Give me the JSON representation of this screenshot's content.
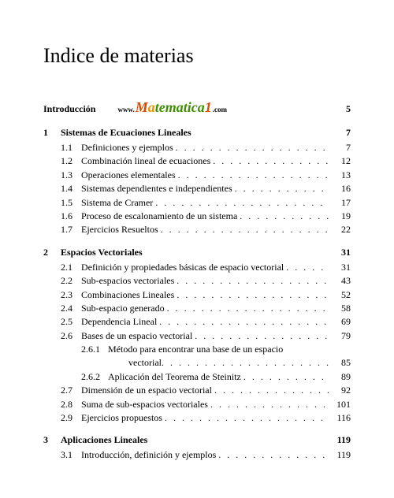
{
  "title": "Indice de materias",
  "intro": {
    "label": "Introducción",
    "page": "5"
  },
  "logo": {
    "www": "www.",
    "M": "M",
    "a": "a",
    "rest": "tematica",
    "one": "1",
    "com": ".com"
  },
  "ch1": {
    "num": "1",
    "title": "Sistemas de Ecuaciones Lineales",
    "page": "7",
    "items": [
      {
        "num": "1.1",
        "title": "Definiciones y ejemplos",
        "page": "7"
      },
      {
        "num": "1.2",
        "title": "Combinación lineal de ecuaciones",
        "page": "12"
      },
      {
        "num": "1.3",
        "title": "Operaciones elementales",
        "page": "13"
      },
      {
        "num": "1.4",
        "title": "Sistemas dependientes e independientes",
        "page": "16"
      },
      {
        "num": "1.5",
        "title": "Sistema de Cramer",
        "page": "17"
      },
      {
        "num": "1.6",
        "title": "Proceso de escalonamiento de un sistema",
        "page": "19"
      },
      {
        "num": "1.7",
        "title": "Ejercicios Resueltos",
        "page": "22"
      }
    ]
  },
  "ch2": {
    "num": "2",
    "title": "Espacios Vectoriales",
    "page": "31",
    "items": [
      {
        "num": "2.1",
        "title": "Definición y propiedades básicas de espacio vectorial",
        "page": "31"
      },
      {
        "num": "2.2",
        "title": "Sub-espacios vectoriales",
        "page": "43"
      },
      {
        "num": "2.3",
        "title": "Combinaciones Lineales",
        "page": "52"
      },
      {
        "num": "2.4",
        "title": "Sub-espacio generado",
        "page": "58"
      },
      {
        "num": "2.5",
        "title": "Dependencia Lineal",
        "page": "69"
      },
      {
        "num": "2.6",
        "title": "Bases de un espacio vectorial",
        "page": "79"
      }
    ],
    "sub26": [
      {
        "num": "2.6.1",
        "line1": "Método para encontrar una base de un espacio",
        "line2": "vectorial",
        "page": "85"
      },
      {
        "num": "2.6.2",
        "line1": "Aplicación del Teorema de Steinitz",
        "page": "89"
      }
    ],
    "items2": [
      {
        "num": "2.7",
        "title": "Dimensión de un espacio vectorial",
        "page": "92"
      },
      {
        "num": "2.8",
        "title": "Suma de sub-espacios vectoriales",
        "page": "101"
      },
      {
        "num": "2.9",
        "title": "Ejercicios propuestos",
        "page": "116"
      }
    ]
  },
  "ch3": {
    "num": "3",
    "title": "Aplicaciones Lineales",
    "page": "119",
    "items": [
      {
        "num": "3.1",
        "title": "Introducción, definición y ejemplos",
        "page": "119"
      }
    ]
  }
}
